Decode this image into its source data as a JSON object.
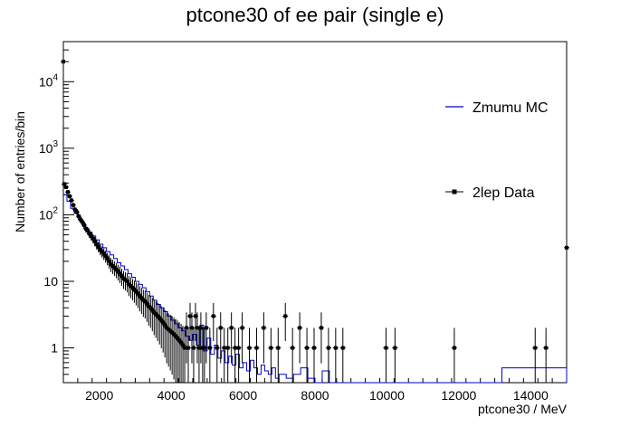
{
  "chart_data": {
    "type": "line",
    "title": "ptcone30 of ee pair (single e)",
    "xlabel": "ptcone30 / MeV",
    "ylabel": "Number of entries/bin",
    "xlim": [
      1000,
      15000
    ],
    "ylim": [
      0.3,
      40000
    ],
    "yscale": "log",
    "grid": false,
    "legend_position": "right",
    "x_ticks": [
      2000,
      4000,
      6000,
      8000,
      10000,
      12000,
      14000
    ],
    "x_tick_labels": [
      "2000",
      "4000",
      "6000",
      "8000",
      "10000",
      "12000",
      "14000"
    ],
    "y_ticks": [
      1,
      10,
      100,
      1000,
      10000
    ],
    "y_tick_labels": [
      {
        "base": "1",
        "exp": ""
      },
      {
        "base": "10",
        "exp": ""
      },
      {
        "base": "10",
        "exp": "2"
      },
      {
        "base": "10",
        "exp": "3"
      },
      {
        "base": "10",
        "exp": "4"
      }
    ],
    "series": [
      {
        "name": "Zmumu MC",
        "style": "histogram",
        "color": "#0000cc",
        "x": [
          1000,
          1100,
          1200,
          1300,
          1400,
          1500,
          1600,
          1700,
          1800,
          1900,
          2000,
          2100,
          2200,
          2300,
          2400,
          2500,
          2600,
          2700,
          2800,
          2900,
          3000,
          3100,
          3200,
          3300,
          3400,
          3500,
          3600,
          3700,
          3800,
          3900,
          4000,
          4100,
          4200,
          4300,
          4400,
          4500,
          4600,
          4700,
          4800,
          4900,
          5000,
          5100,
          5200,
          5300,
          5400,
          5500,
          5600,
          5700,
          5800,
          5900,
          6000,
          6100,
          6200,
          6300,
          6400,
          6500,
          6600,
          6700,
          6800,
          6900,
          7000,
          7200,
          7400,
          7600,
          7800,
          8000,
          8200,
          8400,
          8600,
          8800,
          9000,
          13100,
          13200,
          15000
        ],
        "y": [
          200,
          160,
          125,
          105,
          90,
          75,
          62,
          55,
          48,
          42,
          36,
          32,
          28,
          25,
          22,
          19,
          17,
          15,
          13,
          11.5,
          10,
          9,
          8,
          7,
          6,
          5.2,
          4.5,
          4,
          3.5,
          3,
          2.6,
          2.3,
          2,
          1.8,
          1.5,
          1.3,
          1.6,
          1.1,
          2.2,
          0.9,
          1.4,
          0.8,
          1.1,
          0.7,
          0.9,
          0.6,
          0.75,
          0.55,
          0.8,
          0.5,
          0.6,
          0.45,
          0.65,
          0.5,
          0.4,
          0.55,
          0.45,
          0.4,
          0.5,
          0.35,
          0.4,
          0.35,
          0.4,
          0.5,
          0.35,
          0.3,
          0.45,
          0.3,
          0.3,
          0.3,
          0.3,
          0.3,
          0.5,
          0.3
        ]
      },
      {
        "name": "2lep Data",
        "style": "points",
        "color": "#000000",
        "x": [
          1025,
          1075,
          1125,
          1175,
          1225,
          1275,
          1325,
          1375,
          1425,
          1475,
          1525,
          1575,
          1625,
          1675,
          1725,
          1775,
          1825,
          1875,
          1925,
          1975,
          2025,
          2075,
          2125,
          2175,
          2225,
          2275,
          2325,
          2375,
          2425,
          2475,
          2525,
          2575,
          2625,
          2675,
          2725,
          2775,
          2825,
          2875,
          2925,
          2975,
          3025,
          3075,
          3125,
          3175,
          3225,
          3275,
          3325,
          3375,
          3425,
          3475,
          3525,
          3575,
          3625,
          3675,
          3725,
          3775,
          3825,
          3875,
          3925,
          3975,
          4025,
          4075,
          4125,
          4175,
          4225,
          4275,
          4325,
          4375,
          4425,
          4475,
          4525,
          4575,
          4625,
          4675,
          4725,
          4775,
          4825,
          4875,
          4925,
          4975,
          5075,
          5175,
          5275,
          5375,
          5475,
          5575,
          5675,
          5775,
          5875,
          5975,
          6175,
          6375,
          6575,
          6775,
          6975,
          7175,
          7375,
          7575,
          7775,
          7975,
          8175,
          8375,
          8575,
          8775,
          9975,
          10225,
          11875,
          14125,
          14425,
          15000
        ],
        "y": [
          290,
          260,
          220,
          190,
          165,
          140,
          120,
          110,
          95,
          85,
          78,
          70,
          62,
          58,
          52,
          48,
          44,
          40,
          36,
          33,
          30,
          28,
          26,
          24,
          22,
          20,
          18,
          17,
          16,
          15,
          14,
          13,
          12,
          11,
          10.5,
          10,
          9,
          8.5,
          8,
          7.5,
          7,
          6.5,
          6,
          5.6,
          5.2,
          5,
          4.6,
          4.2,
          4,
          3.7,
          3.4,
          3.2,
          3,
          2.8,
          2.6,
          2.4,
          2.2,
          2,
          1.9,
          1.8,
          1.7,
          1.6,
          1.5,
          1.4,
          1.3,
          1.2,
          1.1,
          1,
          2,
          1,
          3,
          2,
          1,
          3,
          2,
          1,
          2,
          1,
          1,
          2,
          1,
          3,
          1,
          2,
          1,
          1,
          2,
          1,
          1,
          2,
          1,
          1,
          2,
          1,
          1,
          3,
          1,
          2,
          1,
          1,
          2,
          1,
          1,
          1,
          1,
          1,
          1,
          1,
          1,
          32
        ]
      }
    ],
    "overflow_point": {
      "x": 15000,
      "y": 32
    },
    "first_point": {
      "x": 1000,
      "y": 20000
    }
  }
}
